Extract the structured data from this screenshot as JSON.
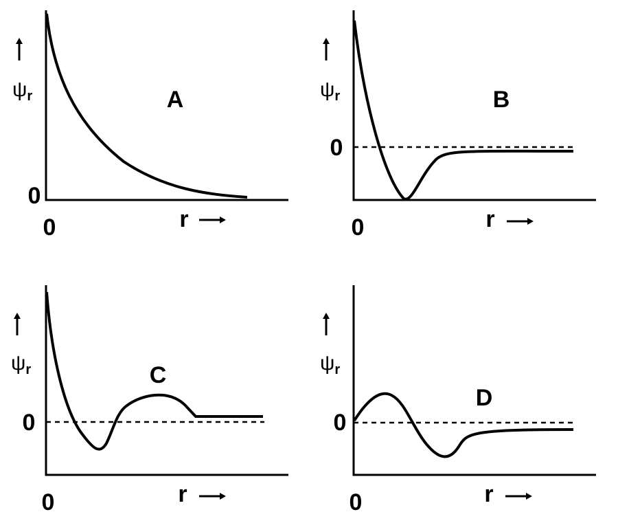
{
  "panels": [
    {
      "label": "A",
      "y_axis": {
        "symbol": "ψ",
        "subscript": "r"
      },
      "y_zero": "0",
      "x_origin": "0",
      "x_axis": "r"
    },
    {
      "label": "B",
      "y_axis": {
        "symbol": "ψ",
        "subscript": "r"
      },
      "y_zero": "0",
      "x_origin": "0",
      "x_axis": "r"
    },
    {
      "label": "C",
      "y_axis": {
        "symbol": "ψ",
        "subscript": "r"
      },
      "y_zero": "0",
      "x_origin": "0",
      "x_axis": "r"
    },
    {
      "label": "D",
      "y_axis": {
        "symbol": "ψ",
        "subscript": "r"
      },
      "y_zero": "0",
      "x_origin": "0",
      "x_axis": "r"
    }
  ]
}
